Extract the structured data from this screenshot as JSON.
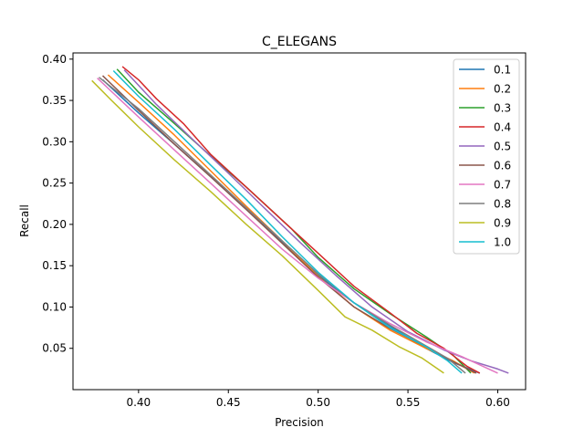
{
  "chart_data": {
    "type": "line",
    "title": "C_ELEGANS",
    "xlabel": "Precision",
    "ylabel": "Recall",
    "xlim": [
      0.3635,
      0.6155
    ],
    "ylim": [
      0.0,
      0.4075
    ],
    "xticks": [
      0.4,
      0.45,
      0.5,
      0.55,
      0.6
    ],
    "xtick_labels": [
      "0.40",
      "0.45",
      "0.50",
      "0.55",
      "0.60"
    ],
    "yticks": [
      0.05,
      0.1,
      0.15,
      0.2,
      0.25,
      0.3,
      0.35,
      0.4
    ],
    "ytick_labels": [
      "0.05",
      "0.10",
      "0.15",
      "0.20",
      "0.25",
      "0.30",
      "0.35",
      "0.40"
    ],
    "grid": false,
    "legend_position": "top-right",
    "series": [
      {
        "name": "0.1",
        "color": "#1f77b4",
        "points": [
          [
            0.38,
            0.375
          ],
          [
            0.4,
            0.335
          ],
          [
            0.42,
            0.297
          ],
          [
            0.44,
            0.258
          ],
          [
            0.46,
            0.218
          ],
          [
            0.48,
            0.178
          ],
          [
            0.5,
            0.138
          ],
          [
            0.52,
            0.105
          ],
          [
            0.54,
            0.077
          ],
          [
            0.56,
            0.05
          ],
          [
            0.575,
            0.033
          ],
          [
            0.59,
            0.02
          ]
        ]
      },
      {
        "name": "0.2",
        "color": "#ff7f0e",
        "points": [
          [
            0.383,
            0.381
          ],
          [
            0.4,
            0.348
          ],
          [
            0.42,
            0.308
          ],
          [
            0.44,
            0.265
          ],
          [
            0.46,
            0.222
          ],
          [
            0.48,
            0.18
          ],
          [
            0.5,
            0.137
          ],
          [
            0.52,
            0.1
          ],
          [
            0.54,
            0.072
          ],
          [
            0.56,
            0.05
          ],
          [
            0.575,
            0.035
          ],
          [
            0.587,
            0.02
          ]
        ]
      },
      {
        "name": "0.3",
        "color": "#2ca02c",
        "points": [
          [
            0.388,
            0.388
          ],
          [
            0.4,
            0.36
          ],
          [
            0.42,
            0.322
          ],
          [
            0.44,
            0.283
          ],
          [
            0.46,
            0.245
          ],
          [
            0.475,
            0.215
          ],
          [
            0.485,
            0.195
          ],
          [
            0.5,
            0.16
          ],
          [
            0.52,
            0.122
          ],
          [
            0.54,
            0.092
          ],
          [
            0.56,
            0.064
          ],
          [
            0.575,
            0.042
          ],
          [
            0.585,
            0.02
          ]
        ]
      },
      {
        "name": "0.4",
        "color": "#d62728",
        "points": [
          [
            0.391,
            0.391
          ],
          [
            0.4,
            0.375
          ],
          [
            0.41,
            0.352
          ],
          [
            0.425,
            0.322
          ],
          [
            0.44,
            0.285
          ],
          [
            0.46,
            0.245
          ],
          [
            0.48,
            0.205
          ],
          [
            0.5,
            0.165
          ],
          [
            0.52,
            0.125
          ],
          [
            0.54,
            0.093
          ],
          [
            0.555,
            0.068
          ],
          [
            0.57,
            0.05
          ],
          [
            0.583,
            0.028
          ],
          [
            0.59,
            0.02
          ]
        ]
      },
      {
        "name": "0.5",
        "color": "#9467bd",
        "points": [
          [
            0.392,
            0.387
          ],
          [
            0.41,
            0.345
          ],
          [
            0.43,
            0.303
          ],
          [
            0.45,
            0.262
          ],
          [
            0.47,
            0.22
          ],
          [
            0.49,
            0.178
          ],
          [
            0.51,
            0.138
          ],
          [
            0.53,
            0.1
          ],
          [
            0.55,
            0.07
          ],
          [
            0.57,
            0.048
          ],
          [
            0.585,
            0.035
          ],
          [
            0.6,
            0.025
          ],
          [
            0.606,
            0.02
          ]
        ]
      },
      {
        "name": "0.6",
        "color": "#8c564b",
        "points": [
          [
            0.38,
            0.38
          ],
          [
            0.4,
            0.338
          ],
          [
            0.42,
            0.297
          ],
          [
            0.44,
            0.258
          ],
          [
            0.46,
            0.218
          ],
          [
            0.48,
            0.177
          ],
          [
            0.5,
            0.136
          ],
          [
            0.52,
            0.1
          ],
          [
            0.54,
            0.074
          ],
          [
            0.56,
            0.052
          ],
          [
            0.575,
            0.034
          ],
          [
            0.588,
            0.02
          ]
        ]
      },
      {
        "name": "0.7",
        "color": "#e377c2",
        "points": [
          [
            0.377,
            0.377
          ],
          [
            0.4,
            0.33
          ],
          [
            0.42,
            0.29
          ],
          [
            0.44,
            0.25
          ],
          [
            0.46,
            0.21
          ],
          [
            0.48,
            0.17
          ],
          [
            0.5,
            0.135
          ],
          [
            0.52,
            0.105
          ],
          [
            0.54,
            0.08
          ],
          [
            0.56,
            0.058
          ],
          [
            0.58,
            0.04
          ],
          [
            0.6,
            0.02
          ]
        ]
      },
      {
        "name": "0.8",
        "color": "#7f7f7f",
        "points": [
          [
            0.378,
            0.378
          ],
          [
            0.4,
            0.34
          ],
          [
            0.42,
            0.3
          ],
          [
            0.44,
            0.26
          ],
          [
            0.46,
            0.22
          ],
          [
            0.48,
            0.18
          ],
          [
            0.5,
            0.14
          ],
          [
            0.52,
            0.105
          ],
          [
            0.54,
            0.078
          ],
          [
            0.56,
            0.053
          ],
          [
            0.572,
            0.038
          ],
          [
            0.582,
            0.02
          ]
        ]
      },
      {
        "name": "0.9",
        "color": "#bcbd22",
        "points": [
          [
            0.374,
            0.374
          ],
          [
            0.385,
            0.35
          ],
          [
            0.4,
            0.318
          ],
          [
            0.42,
            0.278
          ],
          [
            0.44,
            0.24
          ],
          [
            0.46,
            0.2
          ],
          [
            0.48,
            0.162
          ],
          [
            0.5,
            0.12
          ],
          [
            0.515,
            0.088
          ],
          [
            0.53,
            0.072
          ],
          [
            0.545,
            0.052
          ],
          [
            0.558,
            0.038
          ],
          [
            0.57,
            0.02
          ]
        ]
      },
      {
        "name": "1.0",
        "color": "#17becf",
        "points": [
          [
            0.386,
            0.386
          ],
          [
            0.4,
            0.355
          ],
          [
            0.42,
            0.315
          ],
          [
            0.44,
            0.272
          ],
          [
            0.46,
            0.23
          ],
          [
            0.48,
            0.185
          ],
          [
            0.5,
            0.142
          ],
          [
            0.52,
            0.105
          ],
          [
            0.54,
            0.075
          ],
          [
            0.56,
            0.052
          ],
          [
            0.572,
            0.035
          ],
          [
            0.58,
            0.02
          ]
        ]
      }
    ]
  }
}
